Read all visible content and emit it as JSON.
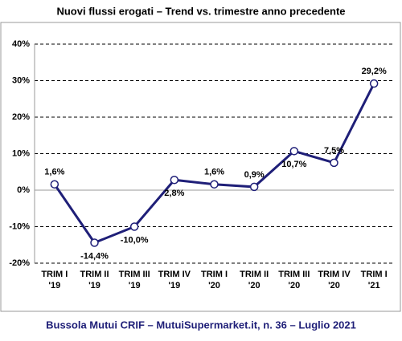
{
  "chart_data": {
    "type": "line",
    "title": "Nuovi flussi erogati – Trend vs. trimestre anno precedente",
    "source": "Bussola Mutui CRIF – MutuiSupermarket.it, n. 36 – Luglio 2021",
    "categories": [
      [
        "TRIM I",
        "'19"
      ],
      [
        "TRIM II",
        "'19"
      ],
      [
        "TRIM III",
        "'19"
      ],
      [
        "TRIM IV",
        "'19"
      ],
      [
        "TRIM I",
        "'20"
      ],
      [
        "TRIM II",
        "'20"
      ],
      [
        "TRIM III",
        "'20"
      ],
      [
        "TRIM IV",
        "'20"
      ],
      [
        "TRIM I",
        "'21"
      ]
    ],
    "values": [
      1.6,
      -14.4,
      -10.0,
      2.8,
      1.6,
      0.9,
      10.7,
      7.5,
      29.2
    ],
    "value_labels": [
      "1,6%",
      "-14,4%",
      "-10,0%",
      "2,8%",
      "1,6%",
      "0,9%",
      "10,7%",
      "7,5%",
      "29,2%"
    ],
    "color": "#1f1f78",
    "ylim": [
      -20,
      40
    ],
    "yticks": [
      {
        "value": -20,
        "label": "-20%"
      },
      {
        "value": -10,
        "label": "-10%"
      },
      {
        "value": 0,
        "label": "0%"
      },
      {
        "value": 10,
        "label": "10%"
      },
      {
        "value": 20,
        "label": "20%"
      },
      {
        "value": 30,
        "label": "30%"
      },
      {
        "value": 40,
        "label": "40%"
      }
    ],
    "grid": true
  }
}
